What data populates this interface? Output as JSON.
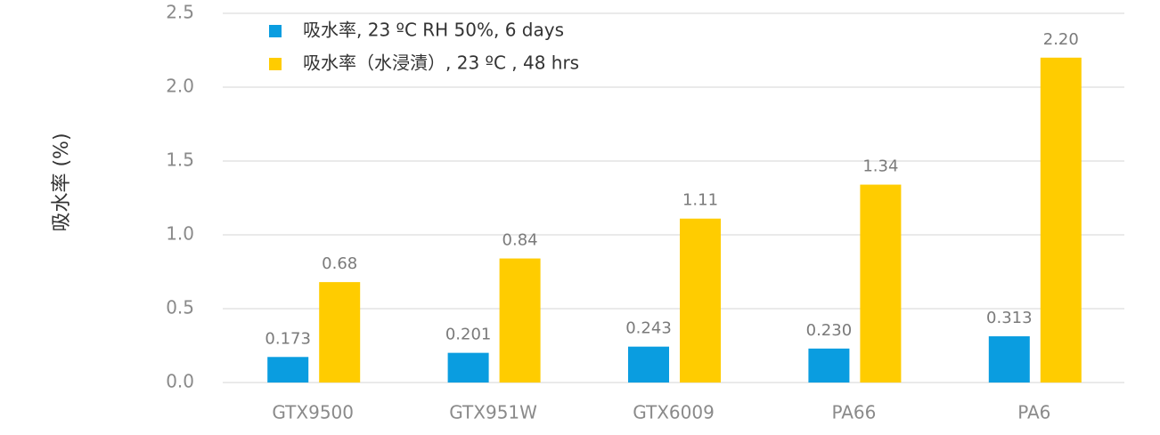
{
  "chart_data": {
    "type": "bar",
    "y_label": "吸水率 (%)",
    "categories": [
      "GTX9500",
      "GTX951W",
      "GTX6009",
      "PA66",
      "PA6"
    ],
    "series": [
      {
        "name": "吸水率, 23 ºC RH 50%, 6 days",
        "color": "#0a9de0",
        "values": [
          0.173,
          0.201,
          0.243,
          0.23,
          0.313
        ],
        "value_labels": [
          "0.173",
          "0.201",
          "0.243",
          "0.230",
          "0.313"
        ]
      },
      {
        "name": "吸水率（水浸漬）, 23 ºC , 48 hrs",
        "color": "#ffcc00",
        "values": [
          0.68,
          0.84,
          1.11,
          1.34,
          2.2
        ],
        "value_labels": [
          "0.68",
          "0.84",
          "1.11",
          "1.34",
          "2.20"
        ]
      }
    ],
    "ylim": [
      0,
      2.5
    ],
    "yticks": [
      {
        "value": 0,
        "label": "0.0"
      },
      0.5,
      {
        "value": 1,
        "label": "1.0"
      },
      1.5,
      {
        "value": 2,
        "label": "2.0"
      },
      2.5
    ],
    "grid": true,
    "legend": "top-left"
  }
}
